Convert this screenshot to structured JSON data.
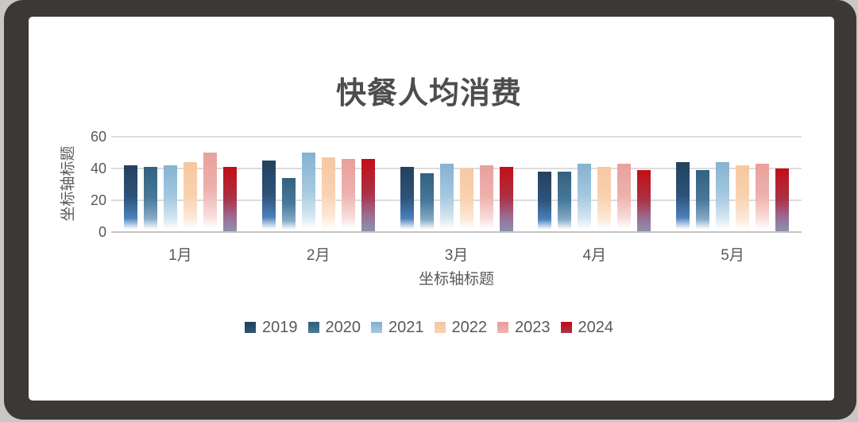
{
  "title": "快餐人均消费",
  "colors": {
    "outer_background": "#cac8c6",
    "slide_frame": "#3b3836",
    "canvas_background": "#ffffff",
    "title_text": "#4d4d4d",
    "axis_text": "#595959",
    "gridline": "#dcdcdc",
    "axis_line": "#c3c3c3"
  },
  "chart_data": {
    "type": "bar",
    "title": "快餐人均消费",
    "x_axis_title": "坐标轴标题",
    "y_axis_title": "坐标轴标题",
    "categories": [
      "1月",
      "2月",
      "3月",
      "4月",
      "5月"
    ],
    "y_ticks": [
      0,
      20,
      40,
      60
    ],
    "ylim": [
      0,
      60
    ],
    "grid": true,
    "legend_position": "bottom",
    "series": [
      {
        "name": "2019",
        "values": [
          42,
          45,
          41,
          38,
          44
        ],
        "color": "#24415d",
        "gradient": [
          "#24415d",
          "#2d5379",
          "#4b80bc",
          "#ffffff"
        ]
      },
      {
        "name": "2020",
        "values": [
          41,
          34,
          37,
          38,
          39
        ],
        "color": "#33617f",
        "gradient": [
          "#33617f",
          "#47789a",
          "#85aac6",
          "#ffffff"
        ]
      },
      {
        "name": "2021",
        "values": [
          42,
          50,
          43,
          43,
          44
        ],
        "color": "#85b2d1",
        "gradient": [
          "#85b2d1",
          "#a5c8e0",
          "#d3e5f1",
          "#ffffff"
        ]
      },
      {
        "name": "2022",
        "values": [
          44,
          47,
          40,
          41,
          42
        ],
        "color": "#f6c8a0",
        "gradient": [
          "#f6c8a0",
          "#f8d2b0",
          "#fce8d8",
          "#ffffff"
        ]
      },
      {
        "name": "2023",
        "values": [
          50,
          46,
          42,
          43,
          43
        ],
        "color": "#e9a09c",
        "gradient": [
          "#e9a09c",
          "#edb1ae",
          "#f7dcda",
          "#ffffff"
        ]
      },
      {
        "name": "2024",
        "values": [
          41,
          46,
          41,
          39,
          40
        ],
        "color": "#c30e17",
        "gradient": [
          "#c30e17",
          "#ab3145",
          "#9a7097",
          "#8f8dab"
        ]
      }
    ]
  }
}
